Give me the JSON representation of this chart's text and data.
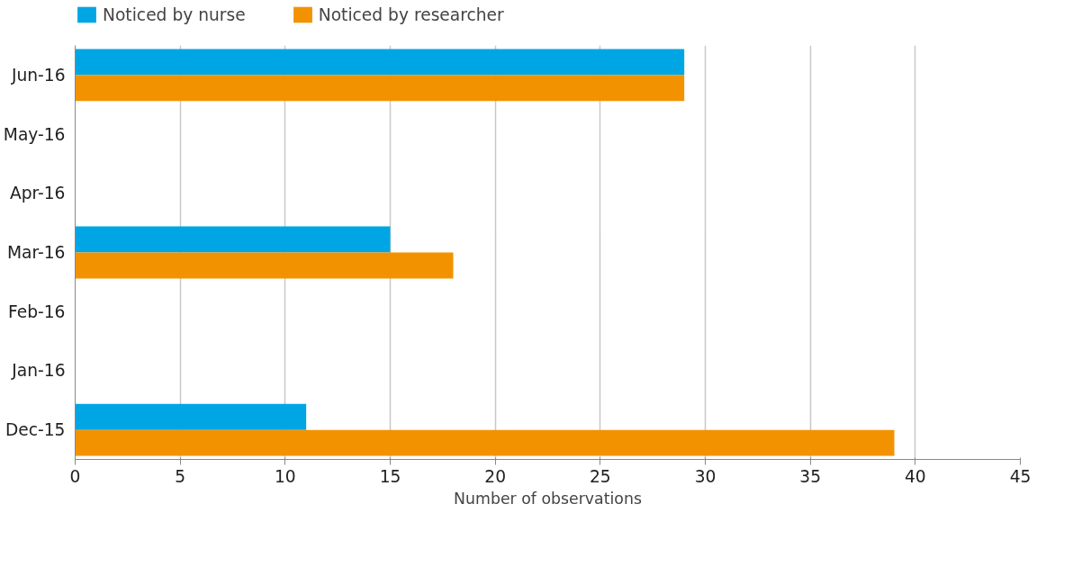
{
  "chart_data": {
    "type": "bar",
    "orientation": "horizontal",
    "xlabel": "Number of observations",
    "categories": [
      "Jun-16",
      "May-16",
      "Apr-16",
      "Mar-16",
      "Feb-16",
      "Jan-16",
      "Dec-15"
    ],
    "series": [
      {
        "name": "Noticed by nurse",
        "color": "#00a6e4",
        "values": [
          29,
          null,
          null,
          15,
          null,
          null,
          11
        ]
      },
      {
        "name": "Noticed by researcher",
        "color": "#f39200",
        "values": [
          29,
          null,
          null,
          18,
          null,
          null,
          39
        ]
      }
    ],
    "xlim": [
      0,
      45
    ],
    "xticks": [
      0,
      5,
      10,
      15,
      20,
      25,
      30,
      35,
      40,
      45
    ],
    "grid": "x",
    "legend": "top left"
  }
}
